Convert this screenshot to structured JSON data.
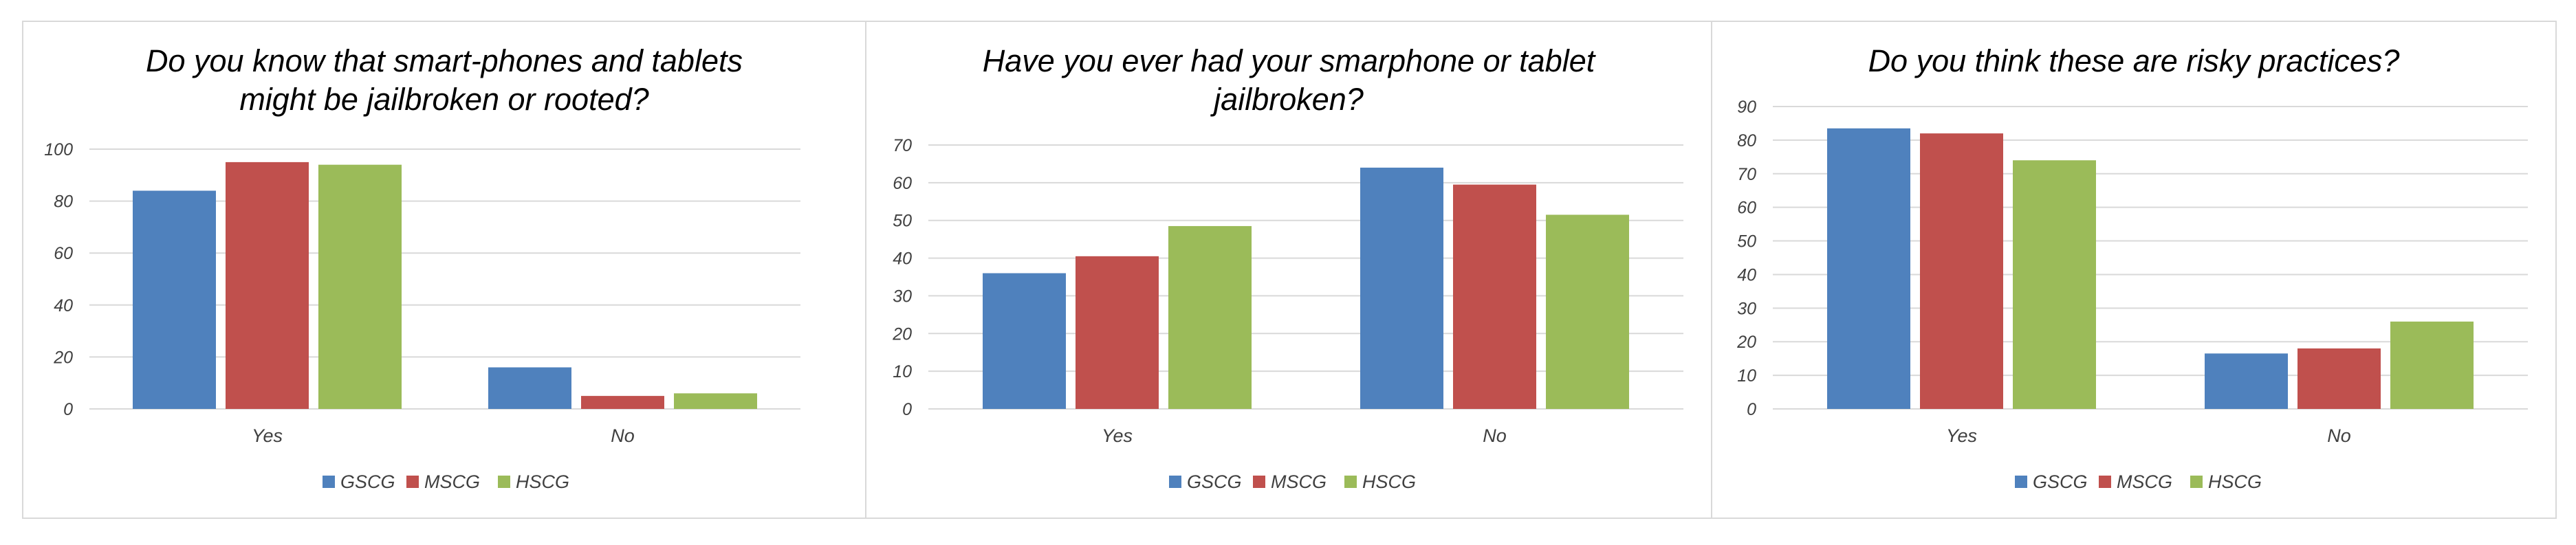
{
  "colors": {
    "GSCG": "#4f81bd",
    "MSCG": "#c0504d",
    "HSCG": "#9bbb59",
    "grid": "#d9d9d9",
    "border": "#d9d9d9"
  },
  "chart_data": [
    {
      "type": "bar",
      "title_lines": [
        "Do you know that smart-phones and tablets",
        "might be jailbroken or rooted?"
      ],
      "categories": [
        "Yes",
        "No"
      ],
      "series": [
        {
          "name": "GSCG",
          "values": [
            84,
            16
          ]
        },
        {
          "name": "MSCG",
          "values": [
            95,
            5
          ]
        },
        {
          "name": "HSCG",
          "values": [
            94,
            6
          ]
        }
      ],
      "ylim": [
        0,
        100
      ],
      "yticks": [
        "0",
        "20",
        "40",
        "60",
        "80",
        "100"
      ],
      "grid": true,
      "legend": "bottom"
    },
    {
      "type": "bar",
      "title_lines": [
        "Have you ever had your smarphone or tablet",
        "jailbroken?"
      ],
      "categories": [
        "Yes",
        "No"
      ],
      "series": [
        {
          "name": "GSCG",
          "values": [
            36,
            64
          ]
        },
        {
          "name": "MSCG",
          "values": [
            40.5,
            59.5
          ]
        },
        {
          "name": "HSCG",
          "values": [
            48.5,
            51.5
          ]
        }
      ],
      "ylim": [
        0,
        70
      ],
      "yticks": [
        "0",
        "10",
        "20",
        "30",
        "40",
        "50",
        "60",
        "70"
      ],
      "grid": true,
      "legend": "bottom"
    },
    {
      "type": "bar",
      "title_lines": [
        "Do you think these are risky practices?"
      ],
      "categories": [
        "Yes",
        "No"
      ],
      "series": [
        {
          "name": "GSCG",
          "values": [
            83.5,
            16.5
          ]
        },
        {
          "name": "MSCG",
          "values": [
            82,
            18
          ]
        },
        {
          "name": "HSCG",
          "values": [
            74,
            26
          ]
        }
      ],
      "ylim": [
        0,
        90
      ],
      "yticks": [
        "0",
        "10",
        "20",
        "30",
        "40",
        "50",
        "60",
        "70",
        "80",
        "90"
      ],
      "grid": true,
      "legend": "bottom"
    }
  ]
}
